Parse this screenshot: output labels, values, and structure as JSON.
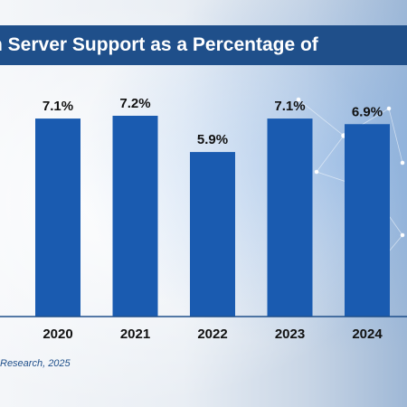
{
  "chart_data": {
    "type": "bar",
    "title": "n Server Support as a Percentage of",
    "categories": [
      "2020",
      "2021",
      "2022",
      "2023",
      "2024"
    ],
    "values": [
      7.1,
      7.2,
      5.9,
      7.1,
      6.9
    ],
    "value_labels": [
      "7.1%",
      "7.2%",
      "5.9%",
      "7.1%",
      "6.9%"
    ],
    "ylim": [
      0,
      7.2
    ],
    "grid": false,
    "bar_color": "#1a5bb0"
  },
  "source": "Research, 2025",
  "colors": {
    "title_band": "#1f4f8a",
    "baseline": "#1f4f8a"
  }
}
